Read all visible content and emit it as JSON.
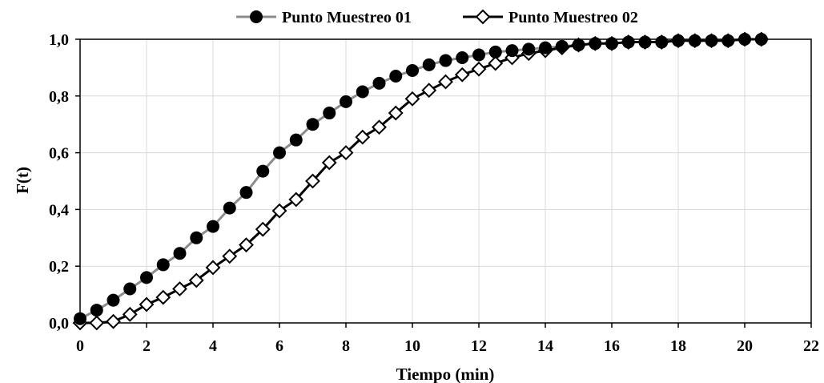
{
  "chart_data": {
    "type": "line",
    "title": "",
    "xlabel": "Tiempo (min)",
    "ylabel": "F(t)",
    "xlim": [
      0,
      22
    ],
    "ylim": [
      0,
      1
    ],
    "x_ticks": [
      0,
      2,
      4,
      6,
      8,
      10,
      12,
      14,
      16,
      18,
      20,
      22
    ],
    "x_tick_labels": [
      "0",
      "2",
      "4",
      "6",
      "8",
      "10",
      "12",
      "14",
      "16",
      "18",
      "20",
      "22"
    ],
    "y_ticks": [
      0,
      0.2,
      0.4,
      0.6,
      0.8,
      1.0
    ],
    "y_tick_labels": [
      "0,0",
      "0,2",
      "0,4",
      "0,6",
      "0,8",
      "1,0"
    ],
    "grid": true,
    "legend_position": "top",
    "series": [
      {
        "name": "Punto Muestreo 01",
        "marker": "filled-circle",
        "line_color": "#8c8c8c",
        "marker_color": "#000000",
        "x": [
          0,
          0.5,
          1,
          1.5,
          2,
          2.5,
          3,
          3.5,
          4,
          4.5,
          5,
          5.5,
          6,
          6.5,
          7,
          7.5,
          8,
          8.5,
          9,
          9.5,
          10,
          10.5,
          11,
          11.5,
          12,
          12.5,
          13,
          13.5,
          14,
          14.5,
          15,
          15.5,
          16,
          16.5,
          17,
          17.5,
          18,
          18.5,
          19,
          19.5,
          20,
          20.5
        ],
        "y": [
          0.015,
          0.045,
          0.08,
          0.12,
          0.16,
          0.205,
          0.245,
          0.3,
          0.34,
          0.405,
          0.46,
          0.535,
          0.6,
          0.645,
          0.7,
          0.74,
          0.78,
          0.815,
          0.845,
          0.87,
          0.89,
          0.91,
          0.925,
          0.935,
          0.945,
          0.955,
          0.96,
          0.965,
          0.97,
          0.975,
          0.98,
          0.985,
          0.985,
          0.99,
          0.99,
          0.99,
          0.995,
          0.995,
          0.995,
          0.995,
          1.0,
          1.0
        ]
      },
      {
        "name": "Punto Muestreo 02",
        "marker": "open-diamond",
        "line_color": "#000000",
        "marker_color": "#000000",
        "x": [
          0,
          0.5,
          1,
          1.5,
          2,
          2.5,
          3,
          3.5,
          4,
          4.5,
          5,
          5.5,
          6,
          6.5,
          7,
          7.5,
          8,
          8.5,
          9,
          9.5,
          10,
          10.5,
          11,
          11.5,
          12,
          12.5,
          13,
          13.5,
          14,
          14.5,
          15,
          15.5,
          16,
          16.5,
          17,
          17.5,
          18,
          18.5,
          19,
          19.5,
          20,
          20.5
        ],
        "y": [
          0.0,
          0.0,
          0.005,
          0.03,
          0.065,
          0.09,
          0.12,
          0.15,
          0.195,
          0.235,
          0.275,
          0.33,
          0.395,
          0.435,
          0.5,
          0.565,
          0.6,
          0.655,
          0.69,
          0.74,
          0.79,
          0.82,
          0.85,
          0.875,
          0.895,
          0.915,
          0.935,
          0.95,
          0.96,
          0.97,
          0.98,
          0.985,
          0.985,
          0.99,
          0.99,
          0.99,
          0.995,
          0.995,
          0.995,
          0.995,
          1.0,
          1.0
        ]
      }
    ]
  }
}
